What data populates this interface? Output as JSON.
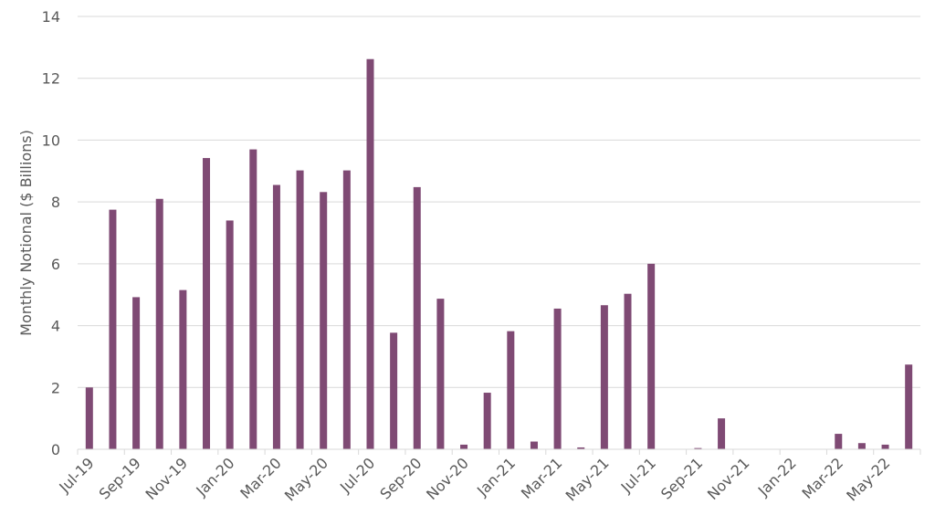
{
  "chart_data": {
    "type": "bar",
    "title": "",
    "xlabel": "",
    "ylabel": "Monthly Notional ($ Billions)",
    "ylim": [
      0,
      14
    ],
    "yticks": [
      0,
      2,
      4,
      6,
      8,
      10,
      12,
      14
    ],
    "grid": true,
    "legend": "none",
    "bar_color": "#7f4a74",
    "categories": [
      "Jul-19",
      "Aug-19",
      "Sep-19",
      "Oct-19",
      "Nov-19",
      "Dec-19",
      "Jan-20",
      "Feb-20",
      "Mar-20",
      "Apr-20",
      "May-20",
      "Jun-20",
      "Jul-20",
      "Aug-20",
      "Sep-20",
      "Oct-20",
      "Nov-20",
      "Dec-20",
      "Jan-21",
      "Feb-21",
      "Mar-21",
      "Apr-21",
      "May-21",
      "Jun-21",
      "Jul-21",
      "Aug-21",
      "Sep-21",
      "Oct-21",
      "Nov-21",
      "Dec-21",
      "Jan-22",
      "Feb-22",
      "Mar-22",
      "Apr-22",
      "May-22",
      "Jun-22"
    ],
    "tick_labels_shown": [
      "Jul-19",
      "Sep-19",
      "Nov-19",
      "Jan-20",
      "Mar-20",
      "May-20",
      "Jul-20",
      "Sep-20",
      "Nov-20",
      "Jan-21",
      "Mar-21",
      "May-21",
      "Jul-21",
      "Sep-21",
      "Nov-21",
      "Jan-22",
      "Mar-22",
      "May-22"
    ],
    "values": [
      2.0,
      7.75,
      4.92,
      8.1,
      5.15,
      9.42,
      7.4,
      9.7,
      8.55,
      9.02,
      8.32,
      9.02,
      12.62,
      3.77,
      8.48,
      4.87,
      0.15,
      1.83,
      3.82,
      0.25,
      4.55,
      0.06,
      4.66,
      5.03,
      6.0,
      0.0,
      0.04,
      1.0,
      0.0,
      0.0,
      0.0,
      0.0,
      0.5,
      0.2,
      0.15,
      2.74
    ]
  }
}
